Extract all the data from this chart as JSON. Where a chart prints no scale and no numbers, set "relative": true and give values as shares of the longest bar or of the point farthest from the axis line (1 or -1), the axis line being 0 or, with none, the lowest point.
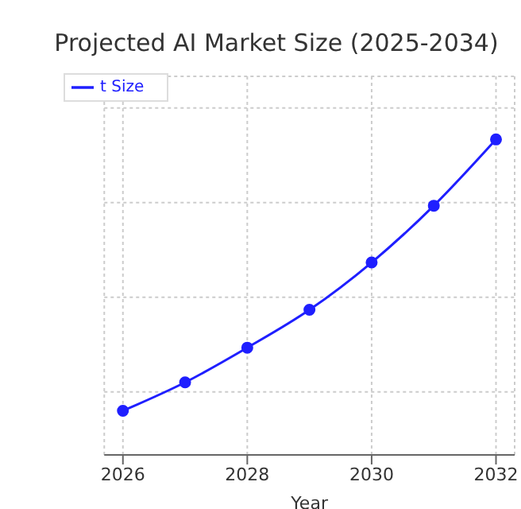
{
  "chart_data": {
    "type": "line",
    "title": "Projected AI Market Size (2025-2034)",
    "xlabel": "Year",
    "x": [
      2026,
      2027,
      2028,
      2029,
      2030,
      2031,
      2032
    ],
    "series": [
      {
        "name": "t Size",
        "color": "#1f1fff",
        "values": [
          0.14,
          0.23,
          0.34,
          0.46,
          0.61,
          0.79,
          1
        ]
      }
    ],
    "relative": true,
    "xlim": [
      2025.7,
      2032.3
    ],
    "xticks": [
      2026,
      2028,
      2030,
      2032
    ],
    "grid": true,
    "legend": "top left",
    "marker": "circle",
    "line_style": "solid"
  }
}
